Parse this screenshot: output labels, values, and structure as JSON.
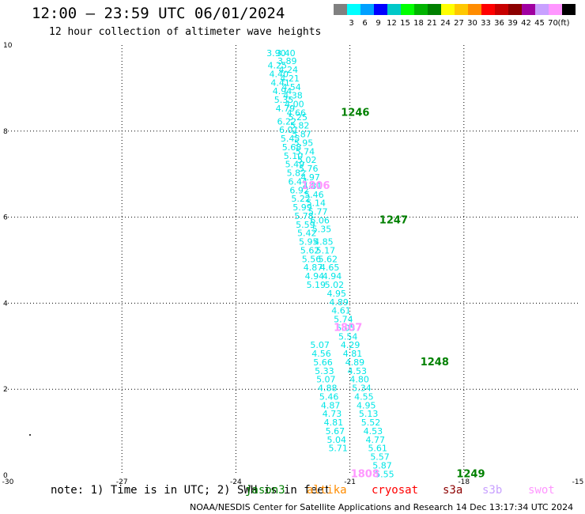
{
  "header": {
    "title": "12:00 – 23:59 UTC 06/01/2024",
    "subtitle": "12 hour collection of altimeter wave heights"
  },
  "color_scale": {
    "labels": [
      "3",
      "6",
      "9",
      "12",
      "15",
      "18",
      "21",
      "24",
      "27",
      "30",
      "33",
      "36",
      "39",
      "42",
      "45",
      "70"
    ],
    "unit": "(ft)",
    "colors": [
      "#808080",
      "#00ffff",
      "#00a0ff",
      "#0000ff",
      "#00c8c8",
      "#00ff00",
      "#00b400",
      "#008000",
      "#ffff00",
      "#ffc800",
      "#ff8c00",
      "#ff0000",
      "#c80000",
      "#8c0000",
      "#a000a0",
      "#c8a0ff",
      "#ff96ff",
      "#000000"
    ]
  },
  "footer": {
    "note": "note:  1) Time is in UTC; 2) SWH is in feet",
    "sources": [
      {
        "label": "jason3",
        "color": "#008000"
      },
      {
        "label": "altika",
        "color": "#ff8c00"
      },
      {
        "label": "cryosat",
        "color": "#ff0000"
      },
      {
        "label": "s3a",
        "color": "#8c0000"
      },
      {
        "label": "s3b",
        "color": "#c8a0ff"
      },
      {
        "label": "swot",
        "color": "#ff96ff"
      }
    ],
    "credit": "NOAA/NESDIS Center for Satellite Applications and Research    14 Dec 13:17:34 UTC 2024"
  },
  "chart_data": {
    "type": "scatter",
    "title": "12:00 – 23:59 UTC 06/01/2024",
    "xlim": [
      -30,
      -15
    ],
    "ylim": [
      0,
      10
    ],
    "x_ticks": [
      "-30",
      "-27",
      "-24",
      "-21",
      "-18",
      "-15"
    ],
    "x_tick_values": [
      -30,
      -27,
      -24,
      -21,
      -18,
      -15
    ],
    "y_ticks": [
      "0",
      "2",
      "4",
      "6",
      "8",
      "10"
    ],
    "y_tick_values": [
      0,
      2,
      4,
      6,
      8,
      10
    ],
    "grid": true,
    "series": [
      {
        "name": "jason3",
        "color": "#00e6e6",
        "points": [
          {
            "x": -22.94,
            "y": 9.82,
            "label": "3.90"
          },
          {
            "x": -22.69,
            "y": 9.82,
            "label": "3.40"
          },
          {
            "x": -22.65,
            "y": 9.63,
            "label": "3.89"
          },
          {
            "x": -22.91,
            "y": 9.53,
            "label": "4.25"
          },
          {
            "x": -22.62,
            "y": 9.43,
            "label": "4.24"
          },
          {
            "x": -22.87,
            "y": 9.33,
            "label": "4.40"
          },
          {
            "x": -22.58,
            "y": 9.23,
            "label": "4.21"
          },
          {
            "x": -22.83,
            "y": 9.13,
            "label": "4.41"
          },
          {
            "x": -22.54,
            "y": 9.03,
            "label": "4.54"
          },
          {
            "x": -22.78,
            "y": 8.93,
            "label": "4.94"
          },
          {
            "x": -22.5,
            "y": 8.83,
            "label": "4.38"
          },
          {
            "x": -22.74,
            "y": 8.73,
            "label": "5.35"
          },
          {
            "x": -22.46,
            "y": 8.63,
            "label": "4.00"
          },
          {
            "x": -22.41,
            "y": 8.43,
            "label": "4.66"
          },
          {
            "x": -22.7,
            "y": 8.53,
            "label": "4.79"
          },
          {
            "x": -22.37,
            "y": 8.33,
            "label": "5.25"
          },
          {
            "x": -22.66,
            "y": 8.23,
            "label": "6.22"
          },
          {
            "x": -22.32,
            "y": 8.13,
            "label": "5.82"
          },
          {
            "x": -22.61,
            "y": 8.03,
            "label": "6.01"
          },
          {
            "x": -22.27,
            "y": 7.93,
            "label": "5.87"
          },
          {
            "x": -22.57,
            "y": 7.83,
            "label": "5.45"
          },
          {
            "x": -22.22,
            "y": 7.73,
            "label": "5.95"
          },
          {
            "x": -22.53,
            "y": 7.63,
            "label": "5.68"
          },
          {
            "x": -22.18,
            "y": 7.53,
            "label": "5.74"
          },
          {
            "x": -22.49,
            "y": 7.43,
            "label": "5.10"
          },
          {
            "x": -22.13,
            "y": 7.33,
            "label": "5.02"
          },
          {
            "x": -22.45,
            "y": 7.23,
            "label": "5.49"
          },
          {
            "x": -22.09,
            "y": 7.13,
            "label": "5.76"
          },
          {
            "x": -22.41,
            "y": 7.03,
            "label": "5.82"
          },
          {
            "x": -22.04,
            "y": 6.93,
            "label": "4.97"
          },
          {
            "x": -22.37,
            "y": 6.83,
            "label": "6.44"
          },
          {
            "x": -21.99,
            "y": 6.73,
            "label": "4.81"
          },
          {
            "x": -22.33,
            "y": 6.63,
            "label": "6.92"
          },
          {
            "x": -21.94,
            "y": 6.53,
            "label": "5.46"
          },
          {
            "x": -22.29,
            "y": 6.43,
            "label": "5.22"
          },
          {
            "x": -21.89,
            "y": 6.33,
            "label": "5.14"
          },
          {
            "x": -22.25,
            "y": 6.23,
            "label": "5.99"
          },
          {
            "x": -21.84,
            "y": 6.13,
            "label": "5.77"
          },
          {
            "x": -22.21,
            "y": 6.03,
            "label": "5.78"
          },
          {
            "x": -21.79,
            "y": 5.93,
            "label": "6.06"
          },
          {
            "x": -22.17,
            "y": 5.83,
            "label": "5.59"
          },
          {
            "x": -21.74,
            "y": 5.73,
            "label": "5.35"
          },
          {
            "x": -22.13,
            "y": 5.63,
            "label": "5.42"
          },
          {
            "x": -21.69,
            "y": 5.43,
            "label": "4.85"
          },
          {
            "x": -22.09,
            "y": 5.43,
            "label": "5.95"
          },
          {
            "x": -21.64,
            "y": 5.23,
            "label": "5.17"
          },
          {
            "x": -22.05,
            "y": 5.23,
            "label": "5.62"
          },
          {
            "x": -21.58,
            "y": 5.03,
            "label": "5.62"
          },
          {
            "x": -22.01,
            "y": 5.03,
            "label": "5.56"
          },
          {
            "x": -21.53,
            "y": 4.83,
            "label": "4.65"
          },
          {
            "x": -21.97,
            "y": 4.83,
            "label": "4.87"
          },
          {
            "x": -21.47,
            "y": 4.63,
            "label": "4.94"
          },
          {
            "x": -21.93,
            "y": 4.63,
            "label": "4.94"
          },
          {
            "x": -21.41,
            "y": 4.43,
            "label": "5.02"
          },
          {
            "x": -21.89,
            "y": 4.43,
            "label": "5.19"
          },
          {
            "x": -21.35,
            "y": 4.23,
            "label": "4.95"
          },
          {
            "x": -21.29,
            "y": 4.03,
            "label": "4.89"
          },
          {
            "x": -21.23,
            "y": 3.83,
            "label": "4.61"
          },
          {
            "x": -21.17,
            "y": 3.63,
            "label": "5.74"
          },
          {
            "x": -21.11,
            "y": 3.43,
            "label": "5.05"
          },
          {
            "x": -21.05,
            "y": 3.23,
            "label": "5.54"
          },
          {
            "x": -21.79,
            "y": 3.03,
            "label": "5.07"
          },
          {
            "x": -20.99,
            "y": 3.03,
            "label": "4.29"
          },
          {
            "x": -21.75,
            "y": 2.83,
            "label": "4.56"
          },
          {
            "x": -20.93,
            "y": 2.83,
            "label": "4.81"
          },
          {
            "x": -21.71,
            "y": 2.63,
            "label": "5.66"
          },
          {
            "x": -20.87,
            "y": 2.63,
            "label": "4.89"
          },
          {
            "x": -21.67,
            "y": 2.43,
            "label": "5.33"
          },
          {
            "x": -20.81,
            "y": 2.43,
            "label": "4.53"
          },
          {
            "x": -21.63,
            "y": 2.23,
            "label": "5.07"
          },
          {
            "x": -20.75,
            "y": 2.23,
            "label": "4.80"
          },
          {
            "x": -21.59,
            "y": 2.03,
            "label": "4.88"
          },
          {
            "x": -20.69,
            "y": 2.03,
            "label": "5.34"
          },
          {
            "x": -21.55,
            "y": 1.83,
            "label": "5.46"
          },
          {
            "x": -20.63,
            "y": 1.83,
            "label": "4.55"
          },
          {
            "x": -21.51,
            "y": 1.63,
            "label": "4.87"
          },
          {
            "x": -20.57,
            "y": 1.63,
            "label": "4.95"
          },
          {
            "x": -21.47,
            "y": 1.43,
            "label": "4.73"
          },
          {
            "x": -20.51,
            "y": 1.43,
            "label": "5.13"
          },
          {
            "x": -21.43,
            "y": 1.23,
            "label": "4.81"
          },
          {
            "x": -20.45,
            "y": 1.23,
            "label": "5.52"
          },
          {
            "x": -21.39,
            "y": 1.03,
            "label": "5.67"
          },
          {
            "x": -20.39,
            "y": 1.03,
            "label": "4.53"
          },
          {
            "x": -21.35,
            "y": 0.83,
            "label": "5.04"
          },
          {
            "x": -20.33,
            "y": 0.83,
            "label": "4.77"
          },
          {
            "x": -21.31,
            "y": 0.63,
            "label": "5.71"
          },
          {
            "x": -20.27,
            "y": 0.63,
            "label": "5.61"
          },
          {
            "x": -20.21,
            "y": 0.43,
            "label": "5.57"
          },
          {
            "x": -20.15,
            "y": 0.23,
            "label": "5.87"
          },
          {
            "x": -20.09,
            "y": 0.03,
            "label": "5.55"
          }
        ]
      },
      {
        "name": "jason3 times",
        "color": "#008000",
        "points": [
          {
            "x": -20.86,
            "y": 8.43,
            "label": "1246"
          },
          {
            "x": -19.85,
            "y": 5.93,
            "label": "1247"
          },
          {
            "x": -18.77,
            "y": 2.63,
            "label": "1248"
          },
          {
            "x": -17.82,
            "y": 0.03,
            "label": "1249"
          }
        ]
      },
      {
        "name": "swot times",
        "color": "#ff96ff",
        "points": [
          {
            "x": -21.9,
            "y": 6.73,
            "label": "1806"
          },
          {
            "x": -21.05,
            "y": 3.43,
            "label": "1807"
          },
          {
            "x": -20.6,
            "y": 0.03,
            "label": "1808"
          }
        ]
      }
    ]
  }
}
